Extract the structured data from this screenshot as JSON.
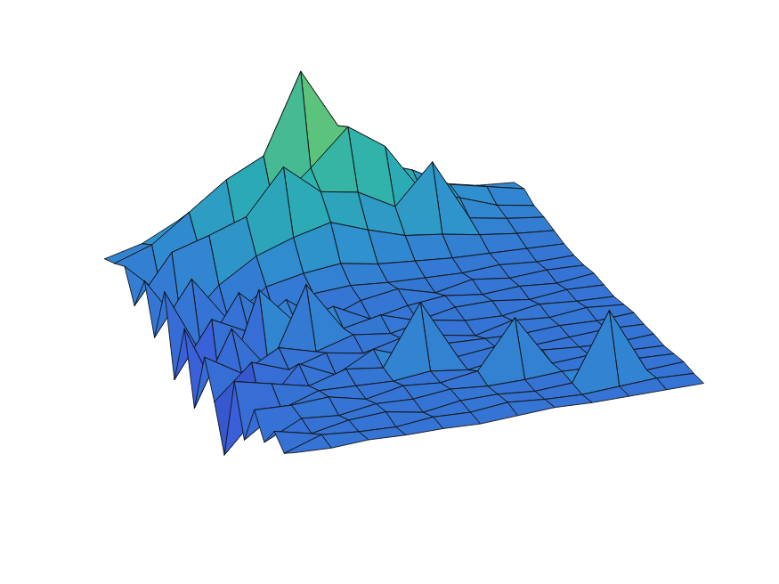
{
  "chart_data": {
    "type": "surface",
    "zlim": [
      -4,
      10
    ],
    "tick_labels": false,
    "grid": false,
    "z": [
      [
        0.5,
        0.8,
        1.2,
        -0.5,
        1.5,
        -1.2,
        2.0,
        -2.5,
        1.0,
        -3.0,
        0.5,
        -1.5,
        -4.0,
        0.8,
        -2.0,
        0.3,
        -1.0,
        0.2,
        -0.5,
        0.1
      ],
      [
        1.0,
        1.5,
        -0.8,
        2.2,
        -1.5,
        1.8,
        -2.0,
        0.6,
        -3.5,
        1.2,
        -0.8,
        0.4,
        -1.8,
        0.3,
        -0.6,
        0.2,
        0.0,
        -0.3,
        0.2,
        0.0
      ],
      [
        2.0,
        3.0,
        1.5,
        2.8,
        0.5,
        -1.0,
        1.2,
        -0.5,
        2.5,
        -1.5,
        0.3,
        -0.4,
        0.5,
        -0.2,
        0.1,
        0.3,
        -0.2,
        0.1,
        0.0,
        0.1
      ],
      [
        2.5,
        4.5,
        2.0,
        3.5,
        1.8,
        0.6,
        -0.8,
        1.0,
        0.2,
        3.0,
        -0.3,
        0.2,
        -0.5,
        0.4,
        0.0,
        -0.2,
        0.1,
        0.2,
        -0.1,
        0.0
      ],
      [
        3.0,
        5.5,
        3.2,
        6.0,
        2.5,
        1.0,
        0.4,
        -0.6,
        0.8,
        0.1,
        0.3,
        -0.2,
        0.6,
        0.1,
        -0.1,
        0.2,
        0.0,
        -0.2,
        0.1,
        0.0
      ],
      [
        4.0,
        10.0,
        5.0,
        4.2,
        3.0,
        1.2,
        0.5,
        0.2,
        -0.3,
        0.5,
        0.0,
        0.3,
        -0.2,
        3.5,
        0.1,
        0.0,
        0.2,
        0.1,
        0.0,
        -0.1
      ],
      [
        3.5,
        6.5,
        7.0,
        3.8,
        2.2,
        0.8,
        0.3,
        0.5,
        0.1,
        -0.2,
        0.4,
        0.1,
        0.2,
        0.0,
        -0.2,
        0.3,
        0.0,
        0.1,
        0.2,
        0.0
      ],
      [
        2.8,
        4.0,
        5.5,
        2.6,
        1.5,
        0.6,
        0.2,
        -0.1,
        0.3,
        0.2,
        0.0,
        -0.3,
        0.1,
        0.2,
        0.1,
        3.0,
        0.0,
        -0.1,
        0.0,
        0.1
      ],
      [
        2.0,
        3.2,
        2.5,
        4.8,
        1.2,
        0.4,
        0.1,
        0.3,
        0.0,
        0.2,
        -0.1,
        0.2,
        0.0,
        -0.1,
        0.2,
        0.0,
        0.1,
        0.0,
        -0.1,
        0.0
      ],
      [
        1.5,
        2.0,
        1.8,
        1.2,
        0.8,
        0.3,
        0.2,
        0.0,
        0.1,
        -0.1,
        0.2,
        0.0,
        0.1,
        0.0,
        0.0,
        0.1,
        0.0,
        3.8,
        0.0,
        0.0
      ],
      [
        1.0,
        1.5,
        1.0,
        0.8,
        0.5,
        0.2,
        0.0,
        0.1,
        -0.1,
        0.1,
        0.0,
        0.2,
        0.0,
        0.1,
        -0.1,
        0.0,
        0.1,
        0.0,
        0.1,
        0.0
      ],
      [
        0.8,
        1.0,
        0.6,
        0.5,
        0.3,
        0.1,
        0.0,
        0.0,
        0.1,
        0.0,
        -0.1,
        0.0,
        0.1,
        0.0,
        0.0,
        -0.1,
        0.0,
        0.1,
        0.0,
        0.0
      ]
    ]
  }
}
